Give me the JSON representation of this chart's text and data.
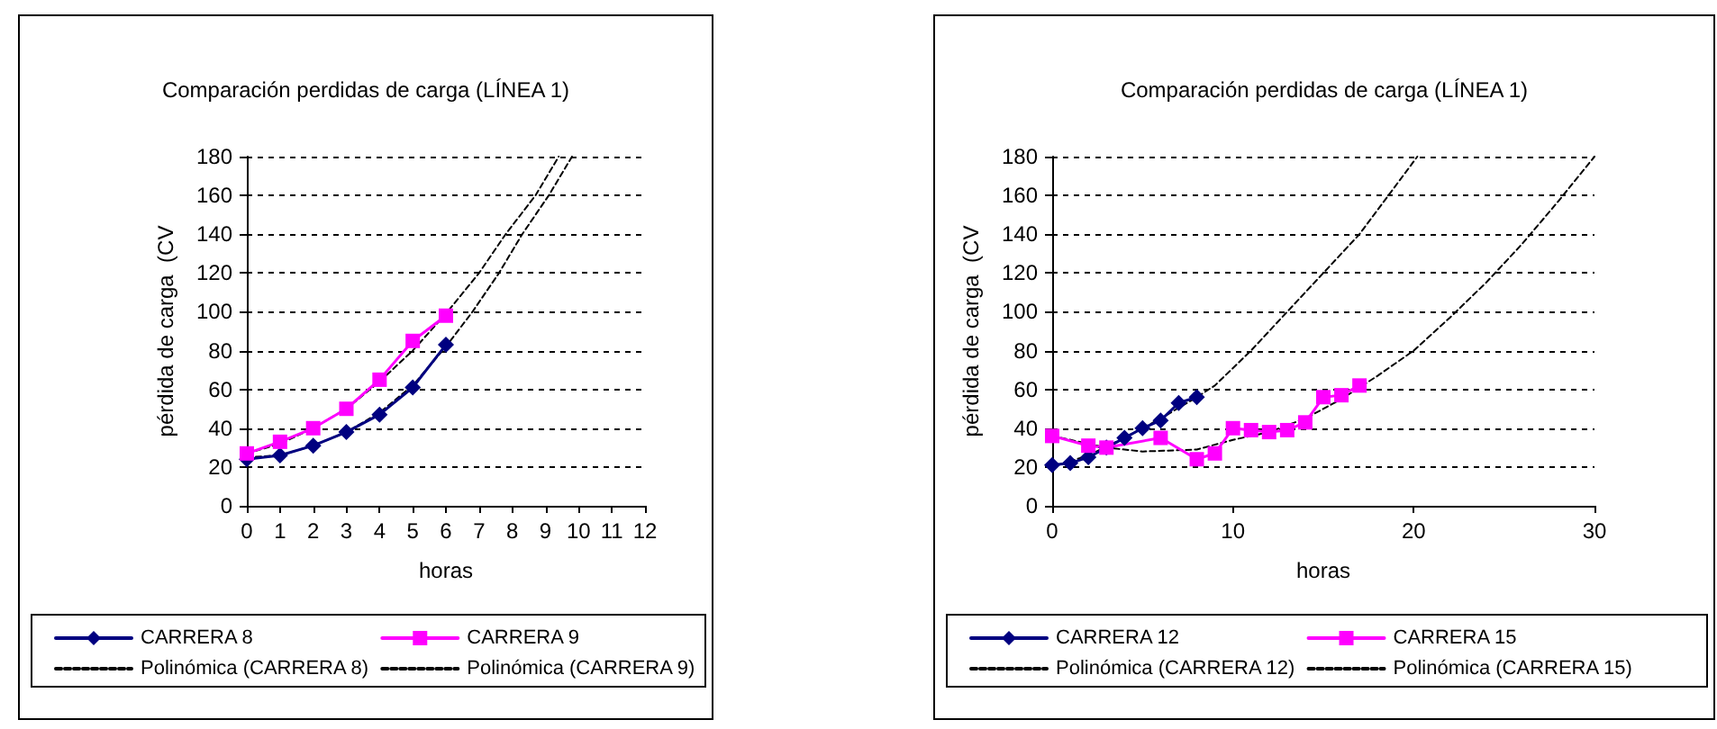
{
  "chart_data": [
    {
      "type": "line",
      "title": "Comparación perdidas de carga (LÍNEA 1)",
      "xlabel": "horas",
      "ylabel": "pérdida de carga  (CV",
      "xlim": [
        0,
        12
      ],
      "xticks": [
        0,
        1,
        2,
        3,
        4,
        5,
        6,
        7,
        8,
        9,
        10,
        11,
        12
      ],
      "ylim": [
        0,
        180
      ],
      "yticks": [
        0,
        20,
        40,
        60,
        80,
        100,
        120,
        140,
        160,
        180
      ],
      "grid": "y",
      "legend": "bottom",
      "series": [
        {
          "name": "CARRERA 8",
          "color": "#000080",
          "marker": "diamond",
          "line_style": "solid",
          "x": [
            0,
            1,
            2,
            3,
            4,
            5,
            6
          ],
          "values": [
            24,
            26,
            31,
            38,
            47,
            61,
            83
          ]
        },
        {
          "name": "CARRERA 9",
          "color": "#ff00ff",
          "marker": "square",
          "line_style": "solid",
          "x": [
            0,
            1,
            2,
            3,
            4,
            5,
            6
          ],
          "values": [
            27,
            33,
            40,
            50,
            65,
            85,
            98
          ]
        },
        {
          "name": "Polinómica (CARRERA 8)",
          "color": "#000000",
          "marker": "none",
          "line_style": "dashed",
          "x": [
            0,
            1,
            2,
            3,
            4,
            5,
            6,
            6.8,
            7.6,
            8.3,
            9.1,
            9.8
          ],
          "values": [
            25,
            26,
            31,
            38,
            48,
            62,
            82,
            100,
            120,
            140,
            160,
            180
          ]
        },
        {
          "name": "Polinómica (CARRERA 9)",
          "color": "#000000",
          "marker": "none",
          "line_style": "dashed",
          "x": [
            0,
            1,
            2,
            3,
            4,
            5,
            6,
            7,
            7.8,
            8.7,
            9.4
          ],
          "values": [
            27,
            32,
            40,
            50,
            64,
            80,
            99,
            120,
            140,
            160,
            180
          ]
        }
      ]
    },
    {
      "type": "line",
      "title": "Comparación perdidas de carga (LÍNEA 1)",
      "xlabel": "horas",
      "ylabel": "pérdida de carga  (CV",
      "xlim": [
        0,
        30
      ],
      "xticks": [
        0,
        10,
        20,
        30
      ],
      "ylim": [
        0,
        180
      ],
      "yticks": [
        0,
        20,
        40,
        60,
        80,
        100,
        120,
        140,
        160,
        180
      ],
      "grid": "y",
      "legend": "bottom",
      "series": [
        {
          "name": "CARRERA 12",
          "color": "#000080",
          "marker": "diamond",
          "line_style": "solid",
          "x": [
            0,
            1,
            2,
            3,
            4,
            5,
            6,
            7,
            8
          ],
          "values": [
            21,
            22,
            25,
            30,
            35,
            40,
            44,
            53,
            56
          ]
        },
        {
          "name": "CARRERA 15",
          "color": "#ff00ff",
          "marker": "square",
          "line_style": "solid",
          "x": [
            0,
            2,
            3,
            6,
            8,
            9,
            10,
            11,
            12,
            13,
            14,
            15,
            16,
            17
          ],
          "values": [
            36,
            31,
            30,
            35,
            24,
            27,
            40,
            39,
            38,
            39,
            43,
            56,
            57,
            62
          ]
        },
        {
          "name": "Polinómica (CARRERA 12)",
          "color": "#000000",
          "marker": "none",
          "line_style": "dashed",
          "x": [
            0,
            2,
            4,
            6,
            8,
            9,
            11,
            13,
            15,
            17,
            18.6,
            20.2
          ],
          "values": [
            20,
            26,
            35,
            45,
            56,
            62,
            80,
            100,
            120,
            140,
            160,
            180
          ]
        },
        {
          "name": "Polinómica (CARRERA 15)",
          "color": "#000000",
          "marker": "none",
          "line_style": "dashed",
          "x": [
            0,
            3,
            5,
            8,
            10,
            12,
            14,
            16,
            18,
            20,
            22,
            24,
            26,
            28,
            30
          ],
          "values": [
            36,
            30,
            28,
            29,
            34,
            38,
            45,
            55,
            67,
            80,
            97,
            115,
            135,
            157,
            180
          ]
        }
      ]
    }
  ]
}
